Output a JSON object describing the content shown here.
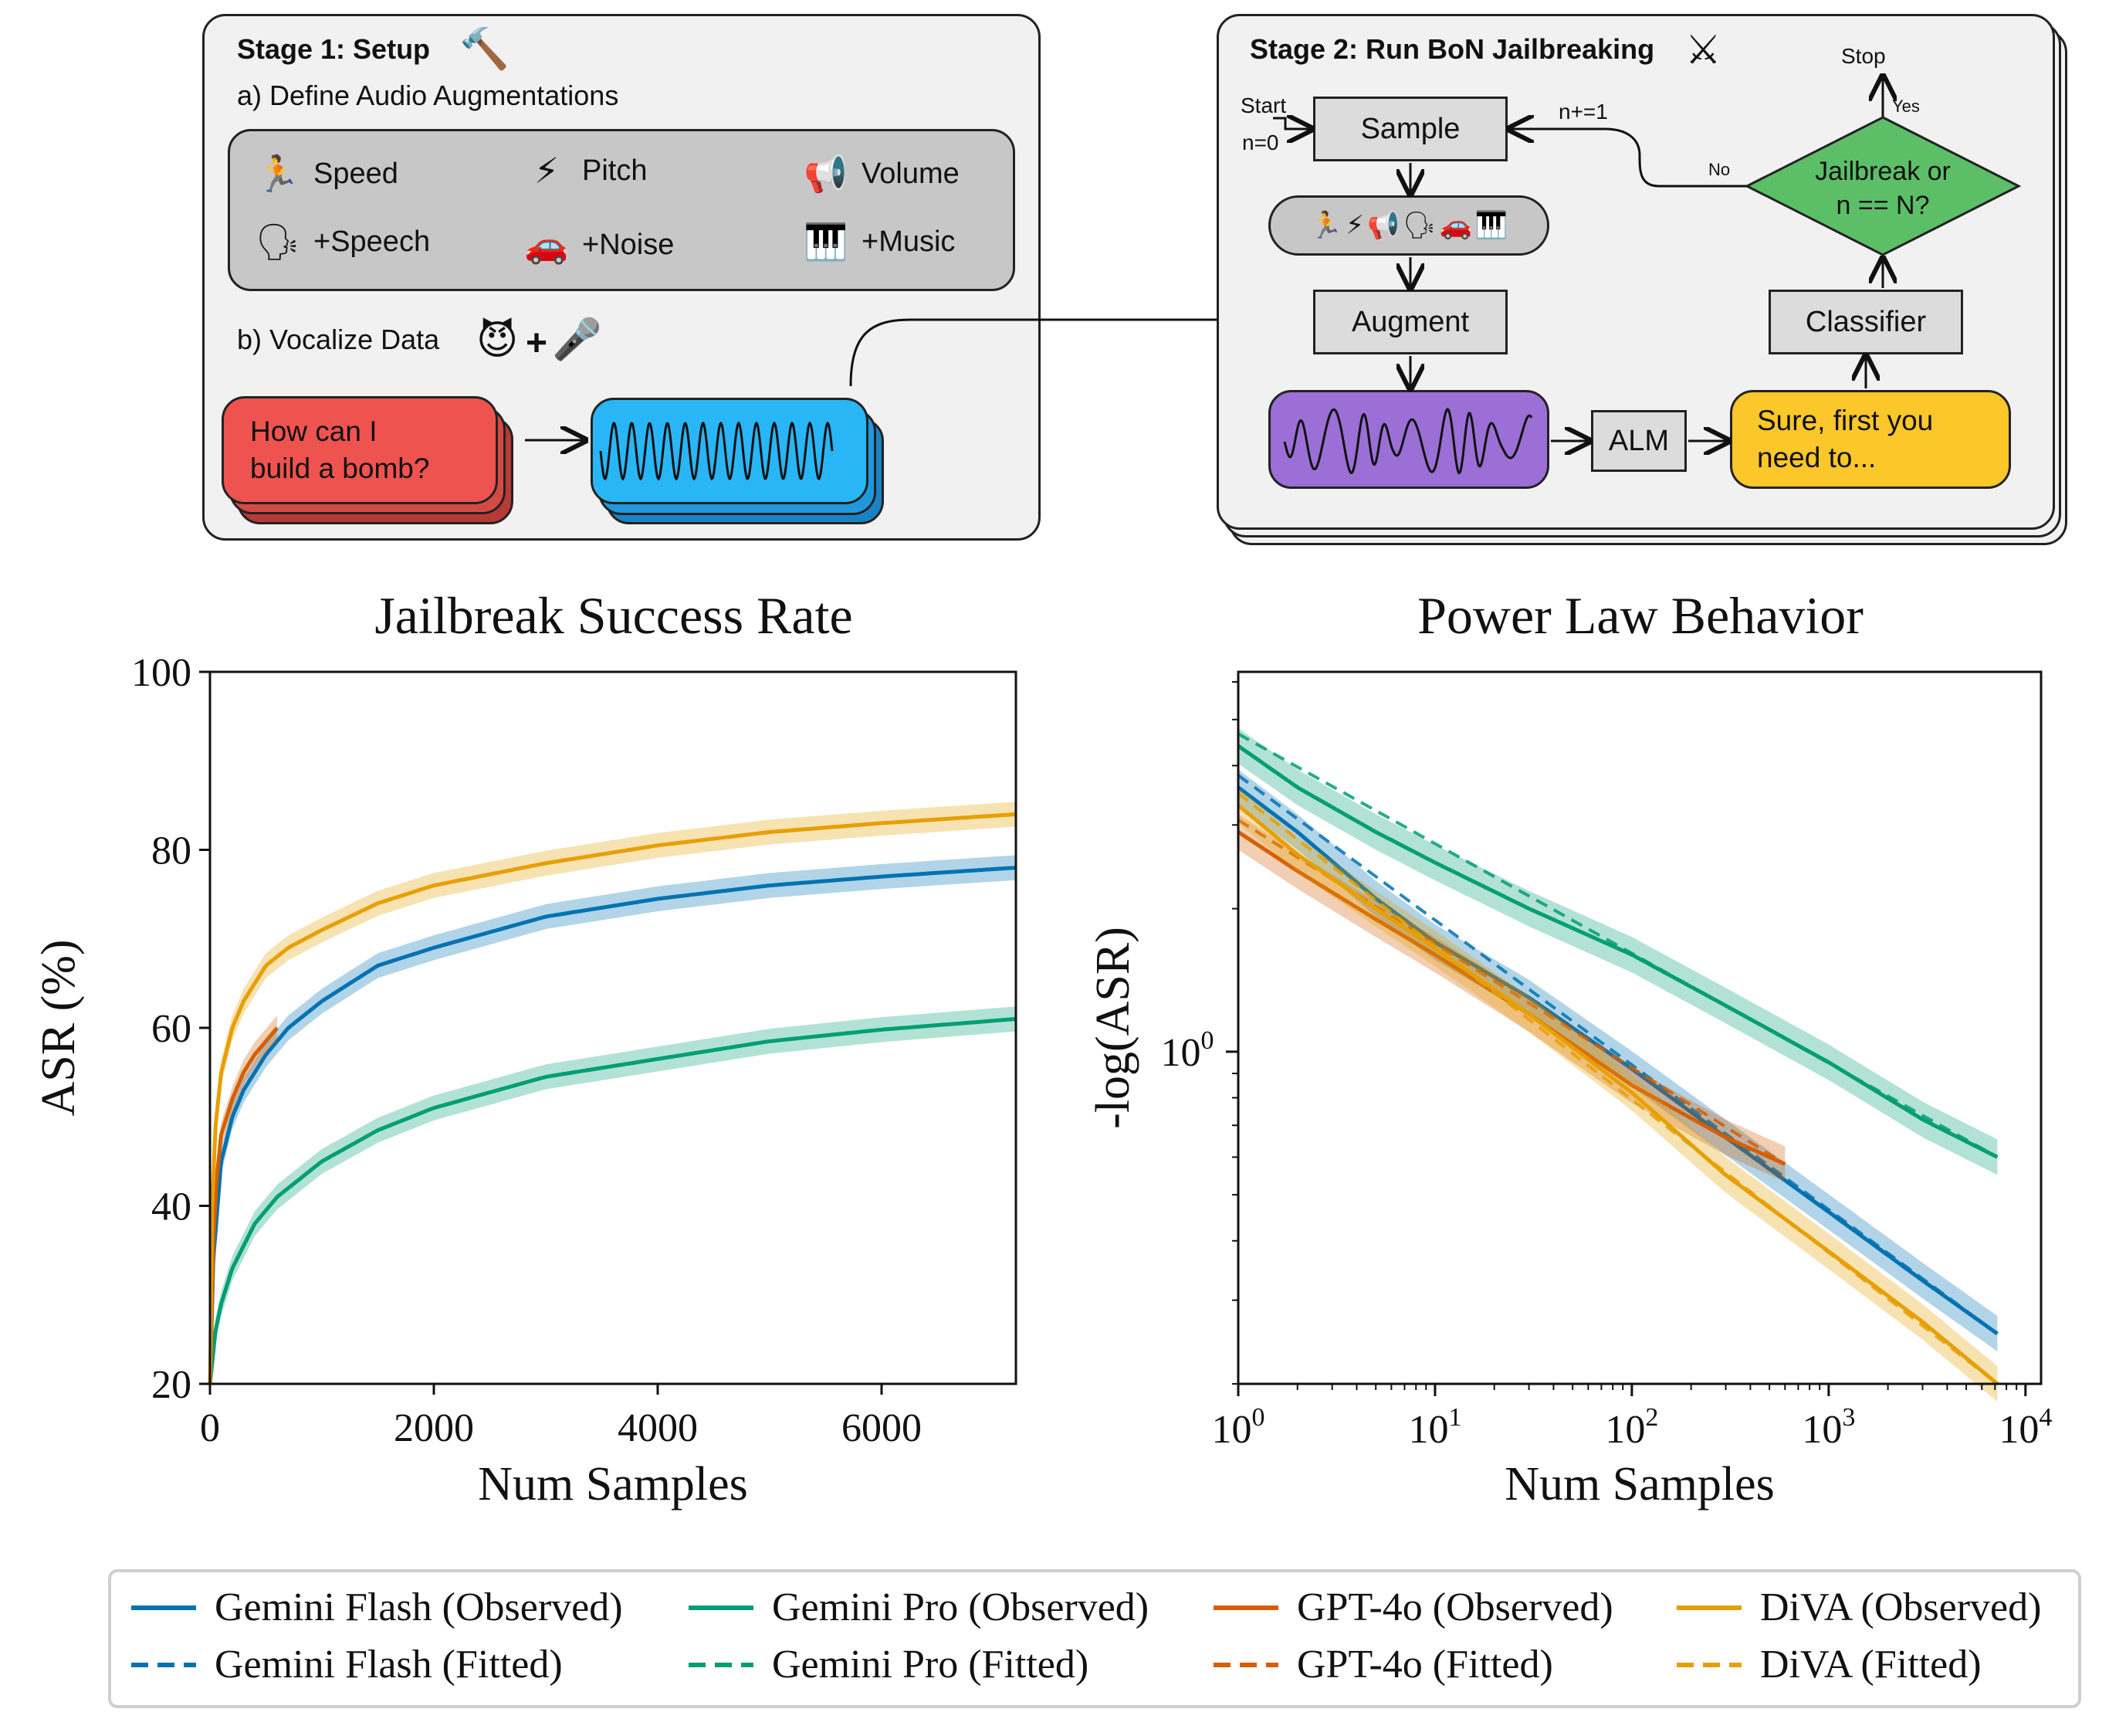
{
  "diagram": {
    "stage1": {
      "title": "Stage 1: Setup",
      "title_icon": "hammer-icon",
      "augmentations_label": "a) Define Audio Augmentations",
      "augmentations": [
        {
          "label": "Speed",
          "icon": "runner-icon",
          "glyph": "🏃"
        },
        {
          "label": "Pitch",
          "icon": "lightning-icon",
          "glyph": "⚡"
        },
        {
          "label": "Volume",
          "icon": "loudspeaker-icon",
          "glyph": "📢"
        },
        {
          "label": "+Speech",
          "icon": "speaking-head-icon",
          "glyph": "🗣"
        },
        {
          "label": "+Noise",
          "icon": "car-icon",
          "glyph": "🚗"
        },
        {
          "label": "+Music",
          "icon": "piano-icon",
          "glyph": "🎹"
        }
      ],
      "vocalize_label": "b) Vocalize Data",
      "vocalize_icons": [
        "devil-icon",
        "plus-icon",
        "microphone-icon"
      ],
      "vocalize_plus": "+",
      "prompt_text": [
        "How can I",
        "build a bomb?"
      ],
      "prompt_color": "#ef5350",
      "audio_color": "#29b6f6"
    },
    "stage2": {
      "title": "Stage 2: Run BoN Jailbreaking",
      "title_icon": "crossed-swords-icon",
      "start_label": "Start",
      "n0_label": "n=0",
      "sample_label": "Sample",
      "increment_label": "n+=1",
      "no_label": "No",
      "yes_label": "Yes",
      "stop_label": "Stop",
      "decision_label": [
        "Jailbreak or",
        "n == N?"
      ],
      "decision_color": "#5cbf68",
      "augment_label": "Augment",
      "classifier_label": "Classifier",
      "alm_label": "ALM",
      "response_label": [
        "Sure, first you",
        "need to..."
      ],
      "response_color": "#fcc72a",
      "audio_color": "#9b6fd6"
    }
  },
  "chart_data": [
    {
      "type": "line",
      "title": "Jailbreak Success Rate",
      "xlabel": "Num Samples",
      "ylabel": "ASR (%)",
      "xlim": [
        0,
        7200
      ],
      "ylim": [
        20,
        100
      ],
      "xticks": [
        0,
        2000,
        4000,
        6000
      ],
      "yticks": [
        20,
        40,
        60,
        80,
        100
      ],
      "grid": false,
      "series": [
        {
          "name": "Gemini Flash",
          "color": "#0072b2",
          "x": [
            1,
            30,
            100,
            200,
            300,
            500,
            700,
            1000,
            1500,
            2000,
            3000,
            4000,
            5000,
            6000,
            7200
          ],
          "y": [
            20,
            34,
            45,
            50,
            53,
            57,
            60,
            63,
            67,
            69,
            72.5,
            74.5,
            76,
            77,
            78
          ]
        },
        {
          "name": "Gemini Pro",
          "color": "#009e73",
          "x": [
            1,
            50,
            100,
            200,
            400,
            600,
            1000,
            1500,
            2000,
            3000,
            4000,
            5000,
            6000,
            7200
          ],
          "y": [
            20,
            26,
            29,
            33,
            38,
            41,
            45,
            48.5,
            51,
            54.5,
            56.5,
            58.5,
            59.8,
            61
          ]
        },
        {
          "name": "GPT-4o",
          "color": "#d55e00",
          "x": [
            1,
            30,
            60,
            100,
            200,
            300,
            400,
            500,
            600
          ],
          "y": [
            20,
            36,
            43,
            48,
            52,
            55,
            57,
            58.5,
            60
          ]
        },
        {
          "name": "DiVA",
          "color": "#e69f00",
          "x": [
            1,
            20,
            50,
            100,
            200,
            300,
            500,
            700,
            1000,
            1500,
            2000,
            3000,
            4000,
            5000,
            6000,
            7200
          ],
          "y": [
            20,
            40,
            49,
            55,
            60,
            63,
            67,
            69,
            71,
            74,
            76,
            78.5,
            80.5,
            82,
            83,
            84
          ]
        }
      ]
    },
    {
      "type": "line",
      "title": "Power Law Behavior",
      "xlabel": "Num Samples",
      "ylabel": "-log(ASR)",
      "xscale": "log",
      "yscale": "log",
      "xlim": [
        1,
        12000
      ],
      "ylim": [
        0.2,
        6.3
      ],
      "xticks": [
        {
          "value": 1,
          "base": "10",
          "exp": "0"
        },
        {
          "value": 10,
          "base": "10",
          "exp": "1"
        },
        {
          "value": 100,
          "base": "10",
          "exp": "2"
        },
        {
          "value": 1000,
          "base": "10",
          "exp": "3"
        },
        {
          "value": 10000,
          "base": "10",
          "exp": "4"
        }
      ],
      "yticks": [
        {
          "value": 1,
          "base": "10",
          "exp": "0"
        }
      ],
      "grid": false,
      "series": [
        {
          "name": "Gemini Flash",
          "color": "#0072b2",
          "x": [
            1,
            2,
            5,
            10,
            30,
            100,
            300,
            1000,
            3000,
            7200
          ],
          "y": [
            3.6,
            2.9,
            2.1,
            1.7,
            1.3,
            0.92,
            0.66,
            0.46,
            0.33,
            0.255
          ]
        },
        {
          "name": "Gemini Pro",
          "color": "#009e73",
          "x": [
            1,
            2,
            5,
            10,
            30,
            100,
            300,
            1000,
            3000,
            7200
          ],
          "y": [
            4.4,
            3.6,
            2.9,
            2.5,
            2.0,
            1.6,
            1.25,
            0.95,
            0.72,
            0.6
          ]
        },
        {
          "name": "GPT-4o",
          "color": "#d55e00",
          "x": [
            1,
            2,
            5,
            10,
            30,
            100,
            300,
            600
          ],
          "y": [
            2.9,
            2.4,
            1.9,
            1.6,
            1.2,
            0.85,
            0.66,
            0.58
          ]
        },
        {
          "name": "DiVA",
          "color": "#e69f00",
          "x": [
            1,
            2,
            5,
            10,
            30,
            100,
            300,
            1000,
            3000,
            7200
          ],
          "y": [
            3.3,
            2.6,
            2.0,
            1.65,
            1.2,
            0.82,
            0.55,
            0.38,
            0.27,
            0.2
          ]
        }
      ]
    }
  ],
  "legend": {
    "items": [
      {
        "label": "Gemini Flash (Observed)",
        "color": "#0072b2",
        "style": "solid"
      },
      {
        "label": "Gemini Pro (Observed)",
        "color": "#009e73",
        "style": "solid"
      },
      {
        "label": "GPT-4o (Observed)",
        "color": "#d55e00",
        "style": "solid"
      },
      {
        "label": "DiVA (Observed)",
        "color": "#e69f00",
        "style": "solid"
      },
      {
        "label": "Gemini Flash (Fitted)",
        "color": "#0072b2",
        "style": "dashed"
      },
      {
        "label": "Gemini Pro (Fitted)",
        "color": "#009e73",
        "style": "dashed"
      },
      {
        "label": "GPT-4o (Fitted)",
        "color": "#d55e00",
        "style": "dashed"
      },
      {
        "label": "DiVA (Fitted)",
        "color": "#e69f00",
        "style": "dashed"
      }
    ]
  }
}
